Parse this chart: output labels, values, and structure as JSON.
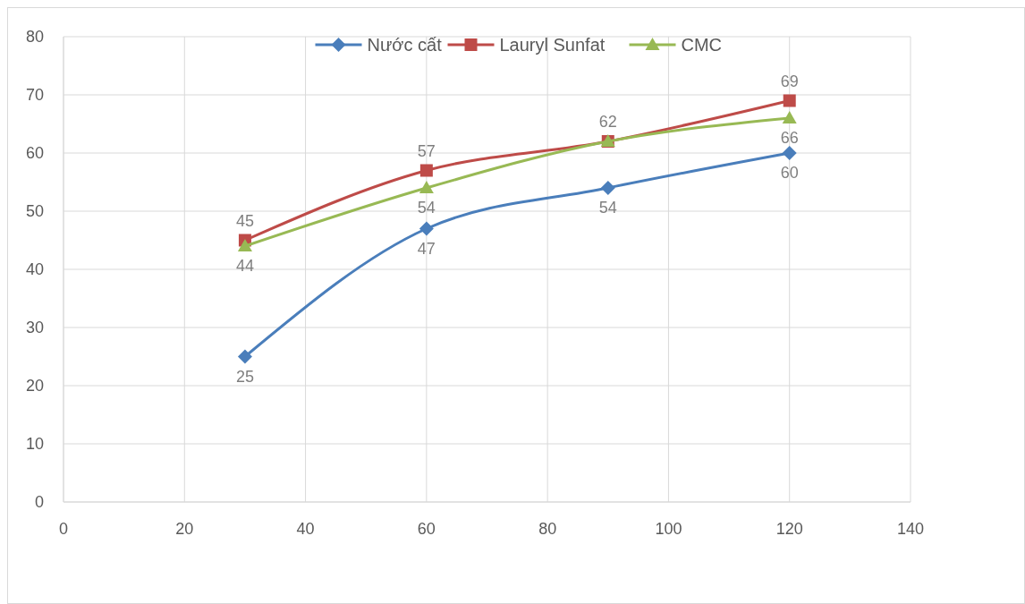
{
  "chart_data": {
    "type": "line",
    "x": [
      30,
      60,
      90,
      120
    ],
    "series": [
      {
        "name": "Nước cất",
        "color": "#4a7ebb",
        "marker": "diamond",
        "values": [
          25,
          47,
          54,
          60
        ],
        "value_labels": [
          "25",
          "47",
          "54",
          "60"
        ]
      },
      {
        "name": "Lauryl Sunfat",
        "color": "#be4b48",
        "marker": "square",
        "values": [
          45,
          57,
          62,
          69
        ],
        "value_labels": [
          "45",
          "57",
          "62",
          "69"
        ]
      },
      {
        "name": "CMC",
        "color": "#98b954",
        "marker": "triangle",
        "values": [
          44,
          54,
          62,
          66
        ],
        "value_labels": [
          "44",
          "54",
          null,
          "66"
        ]
      }
    ],
    "xlim": [
      0,
      140
    ],
    "xticks": [
      0,
      20,
      40,
      60,
      80,
      100,
      120,
      140
    ],
    "ylim": [
      0,
      80
    ],
    "yticks": [
      0,
      10,
      20,
      30,
      40,
      50,
      60,
      70,
      80
    ],
    "grid": true,
    "legend": "top",
    "line_style": "solid"
  }
}
